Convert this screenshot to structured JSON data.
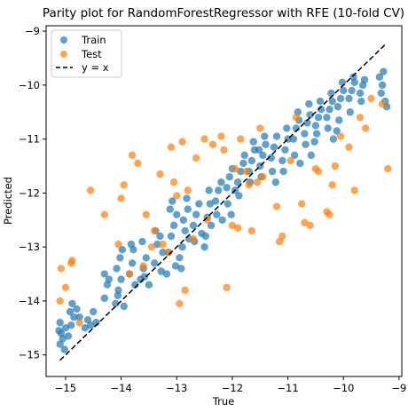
{
  "chart_data": {
    "type": "scatter",
    "title": "Parity plot for RandomForestRegressor with RFE (10-fold CV)",
    "xlabel": "True",
    "ylabel": "Predicted",
    "xlim": [
      -15.35,
      -8.95
    ],
    "ylim": [
      -15.4,
      -8.9
    ],
    "xticks": [
      -15,
      -14,
      -13,
      -12,
      -11,
      -10,
      -9
    ],
    "yticks": [
      -15,
      -14,
      -13,
      -12,
      -11,
      -10,
      -9
    ],
    "tick_labels": {
      "x": [
        "−15",
        "−14",
        "−13",
        "−12",
        "−11",
        "−10",
        "−9"
      ],
      "y": [
        "−15",
        "−14",
        "−13",
        "−12",
        "−11",
        "−10",
        "−9"
      ]
    },
    "legend": {
      "position": "top-left",
      "entries": [
        "Train",
        "Test",
        "y = x"
      ]
    },
    "colors": {
      "train": "#1f77b4",
      "test": "#ff7f0e",
      "line": "#000000"
    },
    "reference_line": {
      "name": "y = x",
      "from": [
        -15.1,
        -15.1
      ],
      "to": [
        -9.25,
        -9.25
      ],
      "style": "dashed"
    },
    "series": [
      {
        "name": "Train",
        "points": [
          [
            -15.1,
            -14.8
          ],
          [
            -15.05,
            -14.7
          ],
          [
            -15.08,
            -14.6
          ],
          [
            -15.0,
            -14.5
          ],
          [
            -15.1,
            -14.4
          ],
          [
            -15.02,
            -14.9
          ],
          [
            -15.12,
            -14.55
          ],
          [
            -14.95,
            -14.65
          ],
          [
            -14.9,
            -14.45
          ],
          [
            -14.85,
            -14.3
          ],
          [
            -14.92,
            -14.2
          ],
          [
            -14.88,
            -14.05
          ],
          [
            -14.8,
            -14.15
          ],
          [
            -14.75,
            -14.3
          ],
          [
            -14.65,
            -14.5
          ],
          [
            -14.6,
            -14.35
          ],
          [
            -14.55,
            -14.45
          ],
          [
            -14.5,
            -14.2
          ],
          [
            -14.45,
            -14.4
          ],
          [
            -14.3,
            -13.95
          ],
          [
            -14.25,
            -13.7
          ],
          [
            -14.3,
            -13.5
          ],
          [
            -14.22,
            -13.6
          ],
          [
            -14.1,
            -14.05
          ],
          [
            -14.05,
            -13.8
          ],
          [
            -14.0,
            -13.6
          ],
          [
            -14.08,
            -13.4
          ],
          [
            -14.02,
            -13.2
          ],
          [
            -13.98,
            -13.05
          ],
          [
            -14.06,
            -13.9
          ],
          [
            -13.95,
            -14.1
          ],
          [
            -13.85,
            -13.5
          ],
          [
            -13.8,
            -13.3
          ],
          [
            -13.78,
            -13.05
          ],
          [
            -13.82,
            -12.95
          ],
          [
            -13.75,
            -13.7
          ],
          [
            -13.65,
            -13.6
          ],
          [
            -13.6,
            -13.4
          ],
          [
            -13.55,
            -13.2
          ],
          [
            -13.62,
            -12.9
          ],
          [
            -13.5,
            -13.7
          ],
          [
            -13.58,
            -13.55
          ],
          [
            -13.4,
            -13.3
          ],
          [
            -13.35,
            -12.95
          ],
          [
            -13.3,
            -12.8
          ],
          [
            -13.25,
            -13.1
          ],
          [
            -13.38,
            -12.7
          ],
          [
            -13.28,
            -13.45
          ],
          [
            -13.15,
            -13.1
          ],
          [
            -13.1,
            -12.8
          ],
          [
            -13.05,
            -12.6
          ],
          [
            -13.0,
            -12.4
          ],
          [
            -13.12,
            -12.3
          ],
          [
            -13.08,
            -12.15
          ],
          [
            -13.02,
            -13.35
          ],
          [
            -12.95,
            -13.2
          ],
          [
            -13.18,
            -13.5
          ],
          [
            -12.9,
            -13.0
          ],
          [
            -12.85,
            -12.7
          ],
          [
            -12.88,
            -12.5
          ],
          [
            -12.8,
            -12.3
          ],
          [
            -12.82,
            -12.1
          ],
          [
            -12.92,
            -13.4
          ],
          [
            -12.78,
            -12.85
          ],
          [
            -12.7,
            -12.6
          ],
          [
            -12.65,
            -12.4
          ],
          [
            -12.6,
            -12.2
          ],
          [
            -12.68,
            -12.9
          ],
          [
            -12.55,
            -12.75
          ],
          [
            -12.45,
            -12.45
          ],
          [
            -12.4,
            -12.2
          ],
          [
            -12.42,
            -11.95
          ],
          [
            -12.48,
            -12.8
          ],
          [
            -12.5,
            -13.0
          ],
          [
            -12.38,
            -12.6
          ],
          [
            -12.3,
            -12.15
          ],
          [
            -12.25,
            -11.95
          ],
          [
            -12.2,
            -11.8
          ],
          [
            -12.28,
            -12.4
          ],
          [
            -12.18,
            -12.5
          ],
          [
            -12.1,
            -11.9
          ],
          [
            -12.05,
            -11.7
          ],
          [
            -12.0,
            -11.55
          ],
          [
            -12.08,
            -12.2
          ],
          [
            -12.02,
            -12.4
          ],
          [
            -11.95,
            -11.95
          ],
          [
            -11.9,
            -11.8
          ],
          [
            -11.85,
            -11.6
          ],
          [
            -11.8,
            -11.45
          ],
          [
            -11.88,
            -12.05
          ],
          [
            -11.78,
            -11.3
          ],
          [
            -11.7,
            -11.6
          ],
          [
            -11.65,
            -11.4
          ],
          [
            -11.6,
            -11.2
          ],
          [
            -11.68,
            -11.8
          ],
          [
            -11.62,
            -11.05
          ],
          [
            -11.5,
            -11.5
          ],
          [
            -11.45,
            -11.3
          ],
          [
            -11.4,
            -11.1
          ],
          [
            -11.48,
            -11.7
          ],
          [
            -11.42,
            -10.95
          ],
          [
            -11.52,
            -11.2
          ],
          [
            -11.3,
            -11.35
          ],
          [
            -11.25,
            -11.15
          ],
          [
            -11.2,
            -10.95
          ],
          [
            -11.28,
            -11.6
          ],
          [
            -11.22,
            -11.8
          ],
          [
            -11.1,
            -11.4
          ],
          [
            -11.05,
            -11.2
          ],
          [
            -11.0,
            -11.0
          ],
          [
            -11.08,
            -11.6
          ],
          [
            -11.02,
            -10.8
          ],
          [
            -10.9,
            -11.0
          ],
          [
            -10.85,
            -10.8
          ],
          [
            -10.8,
            -10.65
          ],
          [
            -10.88,
            -11.3
          ],
          [
            -10.82,
            -10.5
          ],
          [
            -10.78,
            -11.45
          ],
          [
            -10.7,
            -10.9
          ],
          [
            -10.65,
            -10.7
          ],
          [
            -10.6,
            -10.55
          ],
          [
            -10.68,
            -11.1
          ],
          [
            -10.62,
            -10.35
          ],
          [
            -10.58,
            -11.3
          ],
          [
            -10.5,
            -10.75
          ],
          [
            -10.45,
            -10.6
          ],
          [
            -10.4,
            -10.45
          ],
          [
            -10.48,
            -10.9
          ],
          [
            -10.42,
            -10.3
          ],
          [
            -10.52,
            -11.05
          ],
          [
            -10.3,
            -10.6
          ],
          [
            -10.25,
            -10.45
          ],
          [
            -10.2,
            -10.3
          ],
          [
            -10.28,
            -10.8
          ],
          [
            -10.22,
            -10.15
          ],
          [
            -10.18,
            -11.0
          ],
          [
            -10.1,
            -10.4
          ],
          [
            -10.05,
            -10.25
          ],
          [
            -10.0,
            -10.1
          ],
          [
            -10.08,
            -10.65
          ],
          [
            -10.02,
            -9.95
          ],
          [
            -10.12,
            -10.85
          ],
          [
            -9.9,
            -10.25
          ],
          [
            -9.85,
            -10.1
          ],
          [
            -9.8,
            -9.95
          ],
          [
            -9.88,
            -10.5
          ],
          [
            -9.82,
            -9.85
          ],
          [
            -9.7,
            -10.15
          ],
          [
            -9.65,
            -10.0
          ],
          [
            -9.62,
            -9.9
          ],
          [
            -9.68,
            -10.3
          ],
          [
            -9.35,
            -9.85
          ],
          [
            -9.3,
            -10.0
          ],
          [
            -9.32,
            -10.15
          ],
          [
            -9.28,
            -9.75
          ],
          [
            -9.25,
            -10.3
          ],
          [
            -9.22,
            -10.4
          ]
        ]
      },
      {
        "name": "Test",
        "points": [
          [
            -15.1,
            -14.0
          ],
          [
            -15.08,
            -13.4
          ],
          [
            -15.0,
            -13.75
          ],
          [
            -14.9,
            -13.3
          ],
          [
            -14.88,
            -13.25
          ],
          [
            -14.75,
            -14.4
          ],
          [
            -14.55,
            -11.95
          ],
          [
            -14.3,
            -12.4
          ],
          [
            -14.05,
            -12.95
          ],
          [
            -14.0,
            -12.1
          ],
          [
            -13.95,
            -11.85
          ],
          [
            -13.85,
            -13.5
          ],
          [
            -13.8,
            -11.3
          ],
          [
            -13.7,
            -11.45
          ],
          [
            -13.6,
            -13.35
          ],
          [
            -13.55,
            -12.4
          ],
          [
            -13.45,
            -13.0
          ],
          [
            -13.4,
            -12.7
          ],
          [
            -13.3,
            -11.65
          ],
          [
            -13.25,
            -12.95
          ],
          [
            -13.15,
            -13.1
          ],
          [
            -13.1,
            -11.15
          ],
          [
            -13.05,
            -11.8
          ],
          [
            -13.0,
            -12.05
          ],
          [
            -12.9,
            -11.05
          ],
          [
            -12.8,
            -11.95
          ],
          [
            -12.85,
            -13.8
          ],
          [
            -12.95,
            -14.05
          ],
          [
            -12.7,
            -12.85
          ],
          [
            -12.65,
            -11.35
          ],
          [
            -12.5,
            -11.0
          ],
          [
            -12.45,
            -12.5
          ],
          [
            -12.35,
            -11.1
          ],
          [
            -12.2,
            -10.95
          ],
          [
            -12.15,
            -11.2
          ],
          [
            -12.1,
            -13.75
          ],
          [
            -12.0,
            -12.6
          ],
          [
            -11.95,
            -11.55
          ],
          [
            -11.9,
            -12.65
          ],
          [
            -11.85,
            -11.0
          ],
          [
            -11.75,
            -11.6
          ],
          [
            -11.7,
            -11.85
          ],
          [
            -11.65,
            -12.7
          ],
          [
            -11.55,
            -11.8
          ],
          [
            -11.5,
            -10.8
          ],
          [
            -11.45,
            -11.7
          ],
          [
            -11.2,
            -12.25
          ],
          [
            -11.15,
            -12.9
          ],
          [
            -11.1,
            -12.8
          ],
          [
            -10.95,
            -11.4
          ],
          [
            -10.85,
            -10.6
          ],
          [
            -10.75,
            -12.2
          ],
          [
            -10.7,
            -12.55
          ],
          [
            -10.6,
            -12.6
          ],
          [
            -10.5,
            -11.55
          ],
          [
            -10.45,
            -11.6
          ],
          [
            -10.3,
            -12.35
          ],
          [
            -10.25,
            -12.4
          ],
          [
            -10.2,
            -11.85
          ],
          [
            -10.15,
            -11.5
          ],
          [
            -10.05,
            -10.95
          ],
          [
            -9.9,
            -11.15
          ],
          [
            -9.8,
            -11.95
          ],
          [
            -9.7,
            -10.6
          ],
          [
            -9.6,
            -10.8
          ],
          [
            -9.5,
            -10.25
          ],
          [
            -9.3,
            -10.35
          ],
          [
            -9.2,
            -11.55
          ]
        ]
      }
    ]
  }
}
